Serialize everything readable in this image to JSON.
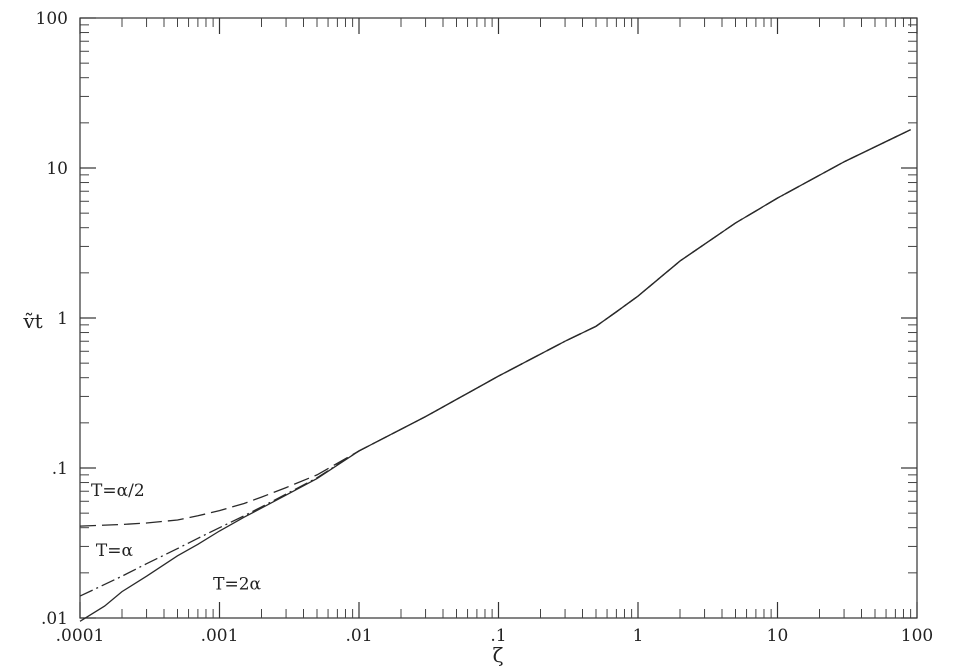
{
  "chart_data": {
    "type": "line",
    "title": "",
    "xlabel": "ζ",
    "ylabel": "ṽt",
    "x_scale": "log",
    "y_scale": "log",
    "xlim": [
      0.0001,
      100
    ],
    "ylim": [
      0.01,
      100
    ],
    "grid": false,
    "legend": "none",
    "x_ticks": [
      {
        "value": 0.0001,
        "label": ".0001"
      },
      {
        "value": 0.001,
        "label": ".001"
      },
      {
        "value": 0.01,
        "label": ".01"
      },
      {
        "value": 0.1,
        "label": ".1"
      },
      {
        "value": 1,
        "label": "1"
      },
      {
        "value": 10,
        "label": "10"
      },
      {
        "value": 100,
        "label": "100"
      }
    ],
    "y_ticks": [
      {
        "value": 0.01,
        "label": ".01"
      },
      {
        "value": 0.1,
        "label": ".1"
      },
      {
        "value": 1,
        "label": "1"
      },
      {
        "value": 10,
        "label": "10"
      },
      {
        "value": 100,
        "label": "100"
      }
    ],
    "series": [
      {
        "name": "T=α/2",
        "style": "dashed",
        "x": [
          0.0001,
          0.0002,
          0.0003,
          0.0005,
          0.0007,
          0.001,
          0.0015,
          0.002,
          0.003,
          0.005,
          0.01,
          0.03,
          0.1,
          0.3,
          0.5,
          0.7,
          1,
          2,
          5,
          10,
          30,
          90
        ],
        "y": [
          0.041,
          0.042,
          0.043,
          0.045,
          0.048,
          0.052,
          0.058,
          0.064,
          0.074,
          0.09,
          0.13,
          0.22,
          0.41,
          0.7,
          0.88,
          1.1,
          1.4,
          2.4,
          4.3,
          6.3,
          11,
          18
        ]
      },
      {
        "name": "T=α",
        "style": "dash-dot",
        "x": [
          0.0001,
          0.0002,
          0.0003,
          0.0005,
          0.0007,
          0.001,
          0.0015,
          0.002,
          0.003,
          0.005,
          0.01,
          0.03,
          0.1,
          0.3,
          0.5,
          0.7,
          1,
          2,
          5,
          10,
          30,
          90
        ],
        "y": [
          0.014,
          0.019,
          0.023,
          0.029,
          0.034,
          0.04,
          0.048,
          0.055,
          0.067,
          0.086,
          0.13,
          0.22,
          0.41,
          0.7,
          0.88,
          1.1,
          1.4,
          2.4,
          4.3,
          6.3,
          11,
          18
        ]
      },
      {
        "name": "T=2α",
        "style": "solid",
        "x": [
          0.0001,
          0.00015,
          0.0002,
          0.0003,
          0.0005,
          0.0007,
          0.001,
          0.0015,
          0.002,
          0.003,
          0.005,
          0.01,
          0.03,
          0.1,
          0.3,
          0.5,
          0.7,
          1,
          2,
          5,
          10,
          30,
          90
        ],
        "y": [
          0.0095,
          0.012,
          0.015,
          0.019,
          0.026,
          0.031,
          0.038,
          0.047,
          0.054,
          0.066,
          0.085,
          0.13,
          0.22,
          0.41,
          0.7,
          0.88,
          1.1,
          1.4,
          2.4,
          4.3,
          6.3,
          11,
          18
        ]
      }
    ],
    "annotations": [
      {
        "text": "T=α/2",
        "x": 0.00012,
        "y": 0.065
      },
      {
        "text": "T=α",
        "x": 0.00013,
        "y": 0.026
      },
      {
        "text": "T=2α",
        "x": 0.0009,
        "y": 0.0155
      }
    ]
  }
}
